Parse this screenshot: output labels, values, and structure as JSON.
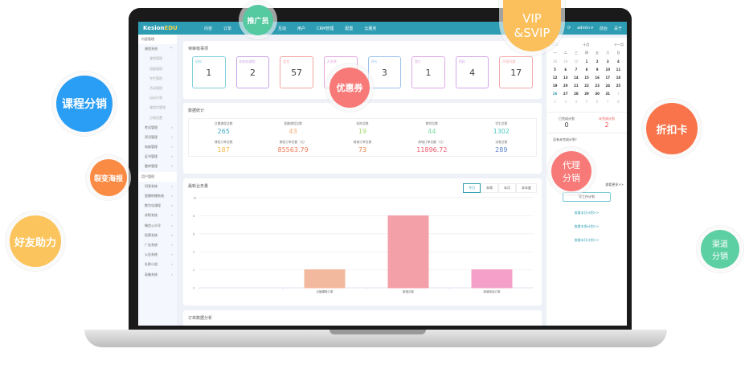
{
  "app": {
    "logo_a": "Kesion",
    "logo_b": "EDU"
  },
  "nav": [
    "内容",
    "订单",
    "互动",
    "用户",
    "CRM管理",
    "配置",
    "云服务"
  ],
  "user": {
    "name": "admin ▾",
    "front": "前台",
    "about": "关于"
  },
  "sidebar": [
    {
      "t": "内容管理",
      "k": "h"
    },
    {
      "t": "课程系统",
      "k": "g",
      "c": "﹀"
    },
    {
      "t": "课程管理",
      "k": "s"
    },
    {
      "t": "班级管理",
      "k": "s"
    },
    {
      "t": "专栏管理",
      "k": "s"
    },
    {
      "t": "活动管理",
      "k": "s"
    },
    {
      "t": "培训计划",
      "k": "s"
    },
    {
      "t": "课程包管理",
      "k": "s"
    },
    {
      "t": "分销设置",
      "k": "s"
    },
    {
      "t": "考试管理",
      "k": "g",
      "c": "›"
    },
    {
      "t": "资讯管理",
      "k": "g",
      "c": "›"
    },
    {
      "t": "电商管理",
      "k": "g",
      "c": "›"
    },
    {
      "t": "证书管理",
      "k": "g",
      "c": "›"
    },
    {
      "t": "题库管理",
      "k": "g",
      "c": "›"
    },
    {
      "t": "用户管理",
      "k": "h"
    },
    {
      "t": "问答系统",
      "k": "g",
      "c": "›"
    },
    {
      "t": "直播转播系统",
      "k": "g",
      "c": "›"
    },
    {
      "t": "数字化课程",
      "k": "g",
      "c": "›"
    },
    {
      "t": "求职系统",
      "k": "g",
      "c": "›"
    },
    {
      "t": "微信公众号",
      "k": "g",
      "c": "›"
    },
    {
      "t": "投票系统",
      "k": "g",
      "c": "›"
    },
    {
      "t": "广告系统",
      "k": "g",
      "c": "›"
    },
    {
      "t": "公告系统",
      "k": "g",
      "c": "›"
    },
    {
      "t": "社群小组",
      "k": "g",
      "c": "›"
    },
    {
      "t": "采集系统",
      "k": "g",
      "c": "›"
    }
  ],
  "pending": {
    "title": "待审核事项",
    "items": [
      {
        "l": "机构",
        "v": "1",
        "c": "#7ecfdc"
      },
      {
        "l": "机构的课程",
        "v": "2",
        "c": "#c9a6e8"
      },
      {
        "l": "发货",
        "v": "57",
        "c": "#f4a3a3"
      },
      {
        "l": "开发票",
        "v": "",
        "c": "#e6a6e0"
      },
      {
        "l": "评价",
        "v": "3",
        "c": "#9cc3ee"
      },
      {
        "l": "图片",
        "v": "1",
        "c": "#e0a9e6"
      },
      {
        "l": "资料",
        "v": "4",
        "c": "#d6a6ea"
      },
      {
        "l": "问答问题",
        "v": "17",
        "c": "#f3a9a9"
      }
    ]
  },
  "stats": {
    "title": "数据统计",
    "items": [
      {
        "l": "点播课程总数",
        "v": "265",
        "c": "#3fa9c4"
      },
      {
        "l": "直播课程总数",
        "v": "43",
        "c": "#f2a56b"
      },
      {
        "l": "机构总数",
        "v": "19",
        "c": "#a4d96c"
      },
      {
        "l": "教师总数",
        "v": "44",
        "c": "#7ed6a0"
      },
      {
        "l": "学生总数",
        "v": "1302",
        "c": "#4ccbc0"
      },
      {
        "l": "课程订单总数",
        "v": "187",
        "c": "#f6b848"
      },
      {
        "l": "课程订单总额（元）",
        "v": "85563.79",
        "c": "#f07a5a"
      },
      {
        "l": "商城订单总数",
        "v": "73",
        "c": "#f0824a"
      },
      {
        "l": "商城订单总额（元）",
        "v": "11896.72",
        "c": "#ef5a6e"
      },
      {
        "l": "试卷总数",
        "v": "289",
        "c": "#5a82c8"
      }
    ]
  },
  "chart_card": {
    "title": "最新业务量",
    "tabs": [
      "今日",
      "本周",
      "本月",
      "本年度"
    ]
  },
  "chart_data": {
    "type": "bar",
    "categories": [
      "",
      "点播课程订单",
      "新增试卷",
      "新增商品订单"
    ],
    "values": [
      0,
      2,
      8,
      2
    ],
    "colors": [
      "#f3b99f",
      "#f3b99f",
      "#f4a0a8",
      "#f4a0c8"
    ],
    "ylim": [
      0,
      10
    ],
    "yticks": [
      0,
      2,
      4,
      6,
      8,
      10
    ],
    "grid": true
  },
  "order_card": {
    "title": "订单数据分析"
  },
  "calendar": {
    "left": "2015",
    "month": "十月",
    "right": "十一月",
    "weekdays": [
      "一",
      "二",
      "三",
      "四",
      "五",
      "六",
      "日"
    ],
    "days": [
      "28",
      "29",
      "30",
      "1",
      "2",
      "3",
      "4",
      "5",
      "6",
      "7",
      "8",
      "9",
      "10",
      "11",
      "12",
      "13",
      "14",
      "15",
      "16",
      "17",
      "18",
      "19",
      "20",
      "21",
      "22",
      "23",
      "24",
      "25",
      "26",
      "27",
      "28",
      "29",
      "30",
      "31",
      "1",
      "2",
      "3",
      "4",
      "5",
      "6",
      "7",
      "8"
    ]
  },
  "plans": {
    "done_label": "已完成计划",
    "done": "0",
    "todo_label": "未完成计划",
    "todo": "2",
    "none": "没有未完成计划！",
    "more": "查看更多>>",
    "write": "写工作计划",
    "links": [
      "查看本日计划>>",
      "查看本周计划>>",
      "查看本月计划>>"
    ]
  },
  "bubbles": {
    "promoter": "推广员",
    "vip": "VIP\n&SVIP",
    "coupon": "优惠券",
    "course": "课程分销",
    "poster": "裂变海报",
    "friend": "好友助力",
    "discount": "折扣卡",
    "agent": "代理\n分销",
    "channel": "渠道\n分销"
  }
}
